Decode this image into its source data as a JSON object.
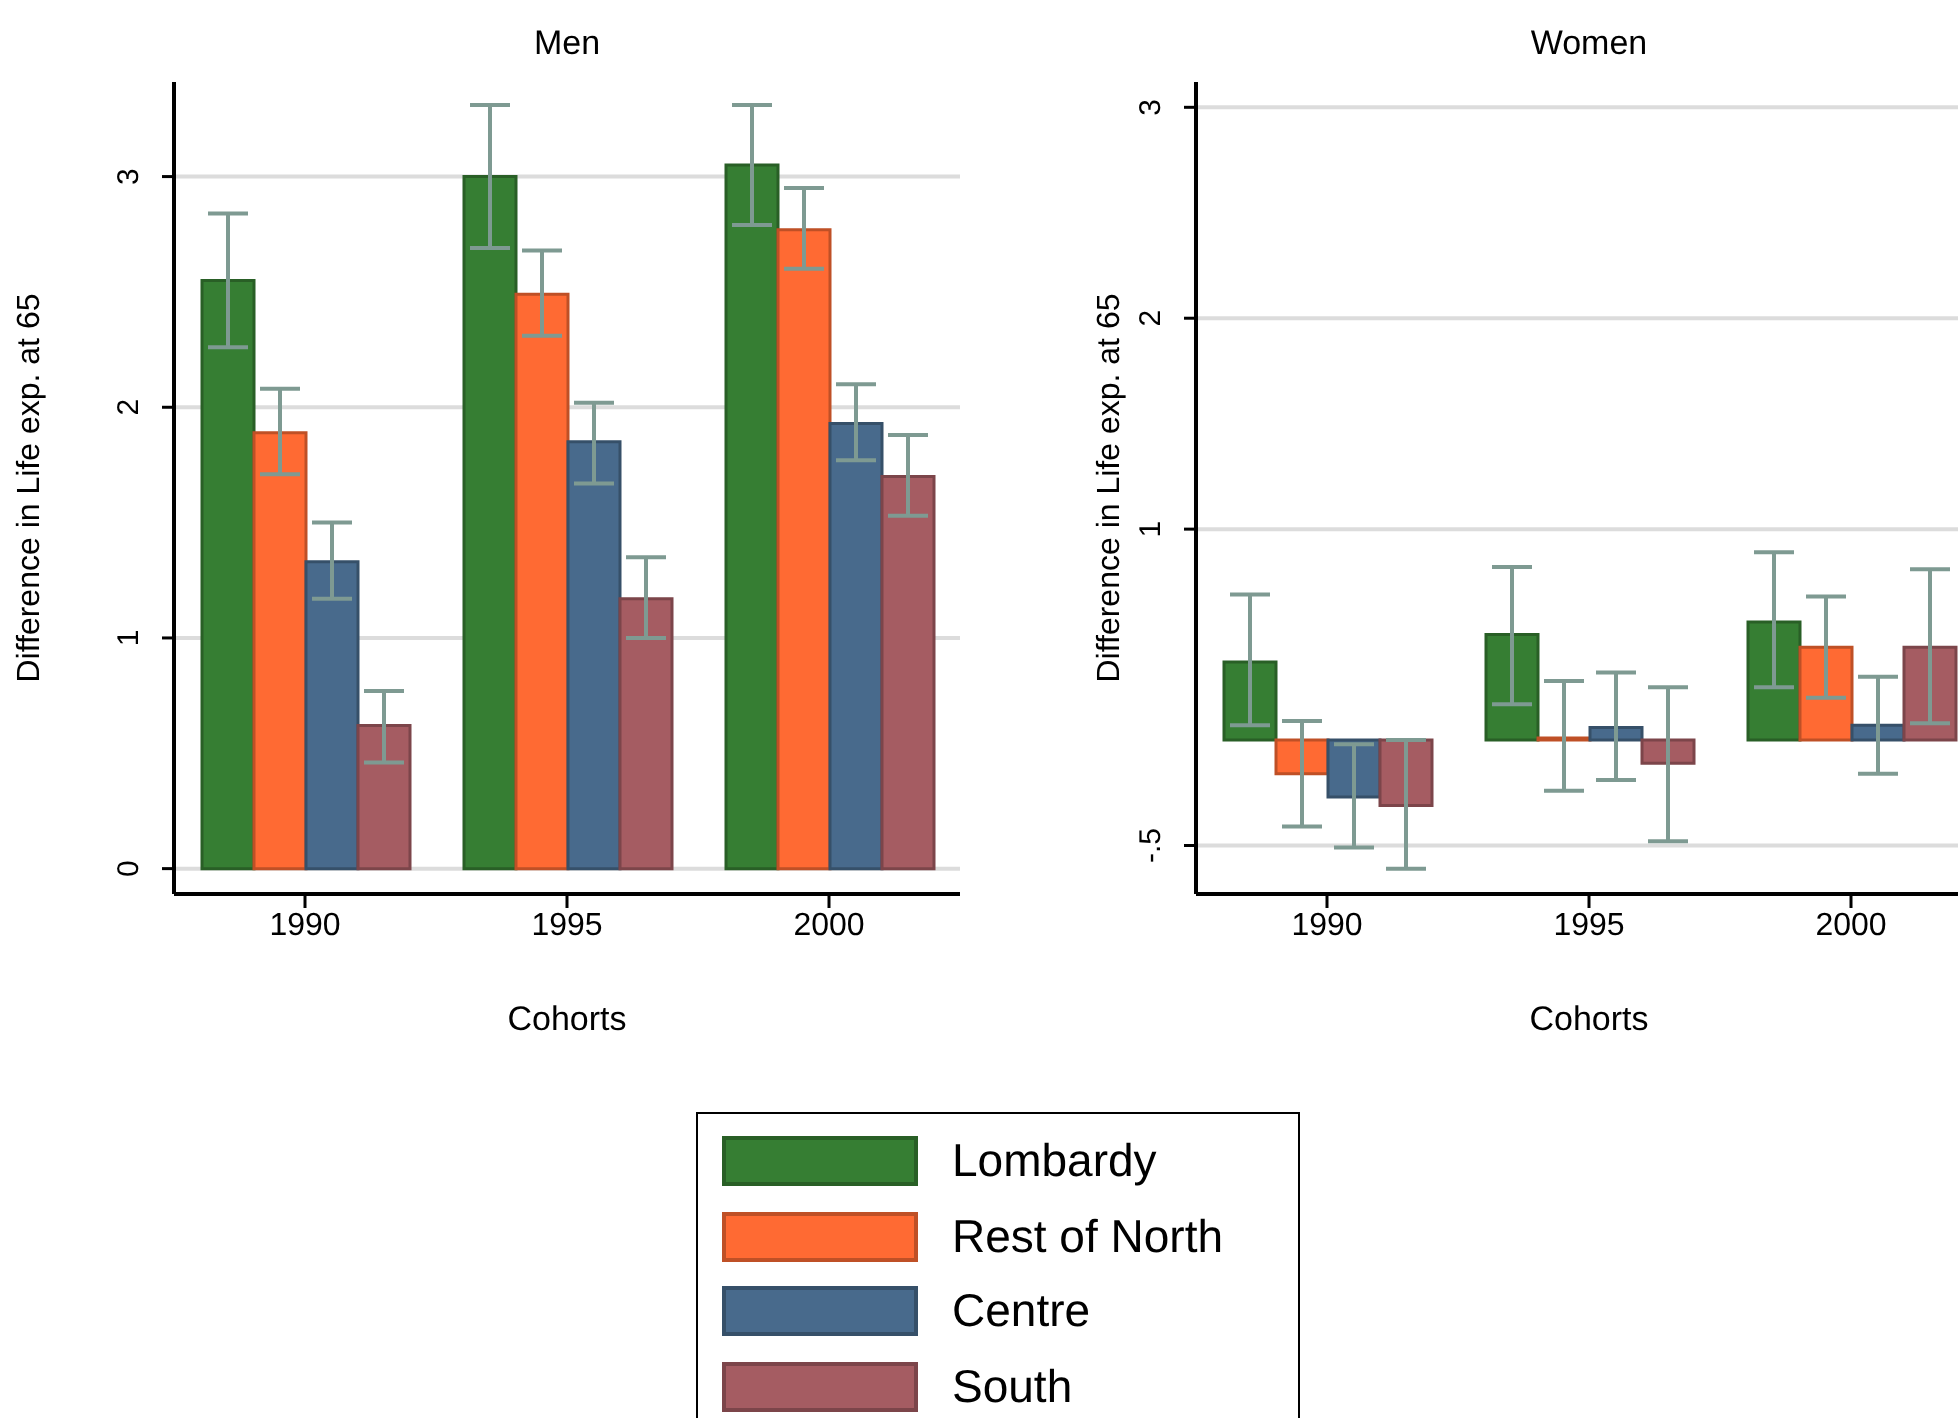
{
  "chart_data": [
    {
      "type": "bar",
      "title": "Men",
      "xlabel": "Cohorts",
      "ylabel": "Difference in Life exp. at 65",
      "categories": [
        "1990",
        "1995",
        "2000"
      ],
      "ylim": [
        -0.11,
        3.41
      ],
      "yticks": [
        0,
        1,
        2,
        3
      ],
      "grid": "y",
      "legend": "bottom",
      "series": [
        {
          "name": "Lombardy",
          "color": "#367e33",
          "values": [
            2.55,
            3.0,
            3.05
          ],
          "errors": [
            [
              2.26,
              2.84
            ],
            [
              2.69,
              3.31
            ],
            [
              2.79,
              3.31
            ]
          ]
        },
        {
          "name": "Rest of North",
          "color": "#ff6a33",
          "values": [
            1.89,
            2.49,
            2.77
          ],
          "errors": [
            [
              1.71,
              2.08
            ],
            [
              2.31,
              2.68
            ],
            [
              2.6,
              2.95
            ]
          ]
        },
        {
          "name": "Centre",
          "color": "#486a8c",
          "values": [
            1.33,
            1.85,
            1.93
          ],
          "errors": [
            [
              1.17,
              1.5
            ],
            [
              1.67,
              2.02
            ],
            [
              1.77,
              2.1
            ]
          ]
        },
        {
          "name": "South",
          "color": "#a55c62",
          "values": [
            0.62,
            1.17,
            1.7
          ],
          "errors": [
            [
              0.46,
              0.77
            ],
            [
              1.0,
              1.35
            ],
            [
              1.53,
              1.88
            ]
          ]
        }
      ]
    },
    {
      "type": "bar",
      "title": "Women",
      "xlabel": "Cohorts",
      "ylabel": "Difference in Life exp. at 65",
      "categories": [
        "1990",
        "1995",
        "2000"
      ],
      "ylim": [
        -0.73,
        3.12
      ],
      "yticks": [
        {
          "value": -0.5,
          "label": "-.5"
        },
        1,
        2,
        3
      ],
      "grid": "y",
      "series": [
        {
          "color": "#367e33",
          "values": [
            0.37,
            0.5,
            0.56
          ],
          "errors": [
            [
              0.07,
              0.69
            ],
            [
              0.17,
              0.82
            ],
            [
              0.25,
              0.89
            ]
          ]
        },
        {
          "color": "#ff6a33",
          "values": [
            -0.16,
            0.01,
            0.44
          ],
          "errors": [
            [
              -0.41,
              0.09
            ],
            [
              -0.24,
              0.28
            ],
            [
              0.2,
              0.68
            ]
          ]
        },
        {
          "color": "#486a8c",
          "values": [
            -0.27,
            0.06,
            0.07
          ],
          "errors": [
            [
              -0.51,
              -0.02
            ],
            [
              -0.19,
              0.32
            ],
            [
              -0.16,
              0.3
            ]
          ]
        },
        {
          "color": "#a55c62",
          "values": [
            -0.31,
            -0.11,
            0.44
          ],
          "errors": [
            [
              -0.61,
              0.0
            ],
            [
              -0.48,
              0.25
            ],
            [
              0.08,
              0.81
            ]
          ]
        }
      ]
    }
  ]
}
